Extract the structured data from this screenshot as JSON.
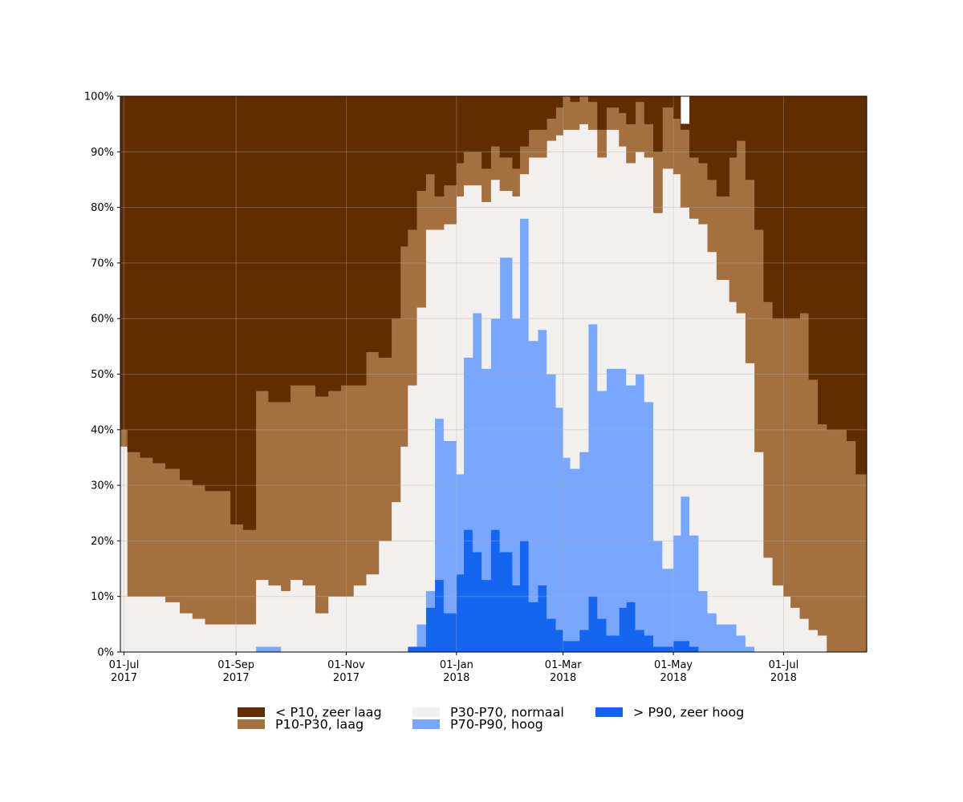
{
  "chart_data": {
    "type": "area",
    "stacked": true,
    "title": "",
    "xlabel": "",
    "ylabel": "",
    "ylim": [
      0,
      100
    ],
    "xlim": [
      "2017-06-29",
      "2018-08-16"
    ],
    "grid": true,
    "legend_position": "bottom",
    "x_ticks": [
      {
        "date": "2017-07-01",
        "label1": "01-Jul",
        "label2": "2017"
      },
      {
        "date": "2017-09-01",
        "label1": "01-Sep",
        "label2": "2017"
      },
      {
        "date": "2017-11-01",
        "label1": "01-Nov",
        "label2": "2017"
      },
      {
        "date": "2018-01-01",
        "label1": "01-Jan",
        "label2": "2018"
      },
      {
        "date": "2018-03-01",
        "label1": "01-Mar",
        "label2": "2018"
      },
      {
        "date": "2018-05-01",
        "label1": "01-May",
        "label2": "2018"
      },
      {
        "date": "2018-07-01",
        "label1": "01-Jul",
        "label2": "2018"
      }
    ],
    "y_ticks": [
      "0%",
      "10%",
      "20%",
      "30%",
      "40%",
      "50%",
      "60%",
      "70%",
      "80%",
      "90%",
      "100%"
    ],
    "x": [
      "2017-06-29",
      "2017-07-03",
      "2017-07-10",
      "2017-07-17",
      "2017-07-24",
      "2017-08-01",
      "2017-08-08",
      "2017-08-15",
      "2017-08-22",
      "2017-08-29",
      "2017-09-05",
      "2017-09-12",
      "2017-09-19",
      "2017-09-26",
      "2017-10-01",
      "2017-10-08",
      "2017-10-15",
      "2017-10-22",
      "2017-10-29",
      "2017-11-05",
      "2017-11-12",
      "2017-11-19",
      "2017-11-26",
      "2017-12-01",
      "2017-12-05",
      "2017-12-10",
      "2017-12-15",
      "2017-12-20",
      "2017-12-25",
      "2018-01-01",
      "2018-01-05",
      "2018-01-10",
      "2018-01-15",
      "2018-01-20",
      "2018-01-25",
      "2018-02-01",
      "2018-02-05",
      "2018-02-10",
      "2018-02-15",
      "2018-02-20",
      "2018-02-25",
      "2018-03-01",
      "2018-03-05",
      "2018-03-10",
      "2018-03-15",
      "2018-03-20",
      "2018-03-25",
      "2018-04-01",
      "2018-04-05",
      "2018-04-10",
      "2018-04-15",
      "2018-04-20",
      "2018-04-25",
      "2018-05-01",
      "2018-05-05",
      "2018-05-10",
      "2018-05-15",
      "2018-05-20",
      "2018-05-25",
      "2018-06-01",
      "2018-06-05",
      "2018-06-10",
      "2018-06-15",
      "2018-06-20",
      "2018-06-25",
      "2018-07-01",
      "2018-07-05",
      "2018-07-10",
      "2018-07-15",
      "2018-07-20",
      "2018-07-25",
      "2018-08-01",
      "2018-08-05",
      "2018-08-10",
      "2018-08-16"
    ],
    "series": [
      {
        "name": "> P90, zeer hoog",
        "color": "#1565f0",
        "values": [
          0,
          0,
          0,
          0,
          0,
          0,
          0,
          0,
          0,
          0,
          0,
          0,
          0,
          0,
          0,
          0,
          0,
          0,
          0,
          0,
          0,
          0,
          0,
          0,
          1,
          1,
          8,
          13,
          7,
          14,
          22,
          18,
          13,
          22,
          18,
          12,
          20,
          9,
          12,
          6,
          4,
          2,
          2,
          4,
          10,
          6,
          3,
          8,
          9,
          4,
          3,
          1,
          1,
          2,
          2,
          1,
          0,
          0,
          0,
          0,
          0,
          0,
          0,
          0,
          0,
          0,
          0,
          0,
          0,
          0,
          0,
          0,
          0,
          0,
          0
        ]
      },
      {
        "name": "P70-P90, hoog",
        "color": "#7aa7fe",
        "values": [
          0,
          0,
          0,
          0,
          0,
          0,
          0,
          0,
          0,
          0,
          0,
          1,
          1,
          0,
          0,
          0,
          0,
          0,
          0,
          0,
          0,
          0,
          0,
          0,
          0,
          4,
          3,
          29,
          31,
          18,
          31,
          43,
          38,
          38,
          53,
          48,
          58,
          47,
          46,
          44,
          40,
          33,
          31,
          32,
          49,
          41,
          48,
          43,
          39,
          46,
          42,
          19,
          14,
          19,
          26,
          20,
          11,
          7,
          5,
          5,
          3,
          1,
          0,
          0,
          0,
          0,
          0,
          0,
          0,
          0,
          0,
          0,
          0,
          0,
          0
        ]
      },
      {
        "name": "P30-P70, normaal",
        "color": "#f2f0ef",
        "values": [
          37,
          10,
          10,
          10,
          9,
          7,
          6,
          5,
          5,
          5,
          5,
          12,
          11,
          11,
          13,
          12,
          7,
          10,
          10,
          12,
          14,
          20,
          27,
          37,
          47,
          57,
          65,
          34,
          39,
          50,
          31,
          23,
          30,
          25,
          12,
          22,
          8,
          33,
          31,
          42,
          49,
          59,
          61,
          59,
          35,
          42,
          43,
          40,
          40,
          40,
          44,
          59,
          72,
          65,
          52,
          57,
          66,
          65,
          62,
          58,
          58,
          51,
          36,
          17,
          12,
          10,
          8,
          6,
          4,
          3,
          0,
          0,
          0,
          0,
          0
        ]
      },
      {
        "name": "P10-P30, laag",
        "color": "#a57040",
        "values": [
          3,
          26,
          25,
          24,
          24,
          24,
          24,
          24,
          24,
          18,
          17,
          34,
          33,
          34,
          35,
          36,
          39,
          37,
          38,
          36,
          40,
          33,
          33,
          36,
          28,
          21,
          10,
          6,
          7,
          6,
          6,
          6,
          6,
          6,
          6,
          5,
          5,
          5,
          5,
          4,
          5,
          6,
          5,
          5,
          5,
          5,
          4,
          6,
          7,
          9,
          6,
          11,
          11,
          10,
          14,
          11,
          11,
          13,
          15,
          26,
          31,
          33,
          40,
          46,
          48,
          50,
          52,
          55,
          45,
          38,
          40,
          40,
          38,
          32,
          23
        ]
      },
      {
        "name": "< P10, zeer laag",
        "color": "#612c00",
        "values": [
          60,
          64,
          65,
          66,
          67,
          69,
          70,
          71,
          71,
          77,
          78,
          53,
          55,
          55,
          52,
          52,
          54,
          53,
          52,
          52,
          46,
          47,
          40,
          27,
          24,
          17,
          14,
          18,
          16,
          12,
          10,
          10,
          13,
          9,
          11,
          13,
          9,
          6,
          6,
          4,
          2,
          0,
          1,
          0,
          1,
          6,
          2,
          3,
          5,
          1,
          5,
          10,
          2,
          4,
          1,
          11,
          12,
          15,
          18,
          11,
          8,
          15,
          24,
          37,
          40,
          40,
          40,
          39,
          51,
          59,
          60,
          60,
          62,
          68,
          77
        ]
      }
    ]
  },
  "legend": [
    {
      "label": "< P10, zeer laag",
      "color": "#612c00"
    },
    {
      "label": "P10-P30, laag",
      "color": "#a57040"
    },
    {
      "label": "P30-P70, normaal",
      "color": "#f2f0ef"
    },
    {
      "label": "P70-P90, hoog",
      "color": "#7aa7fe"
    },
    {
      "label": "> P90, zeer hoog",
      "color": "#1565f0"
    }
  ]
}
